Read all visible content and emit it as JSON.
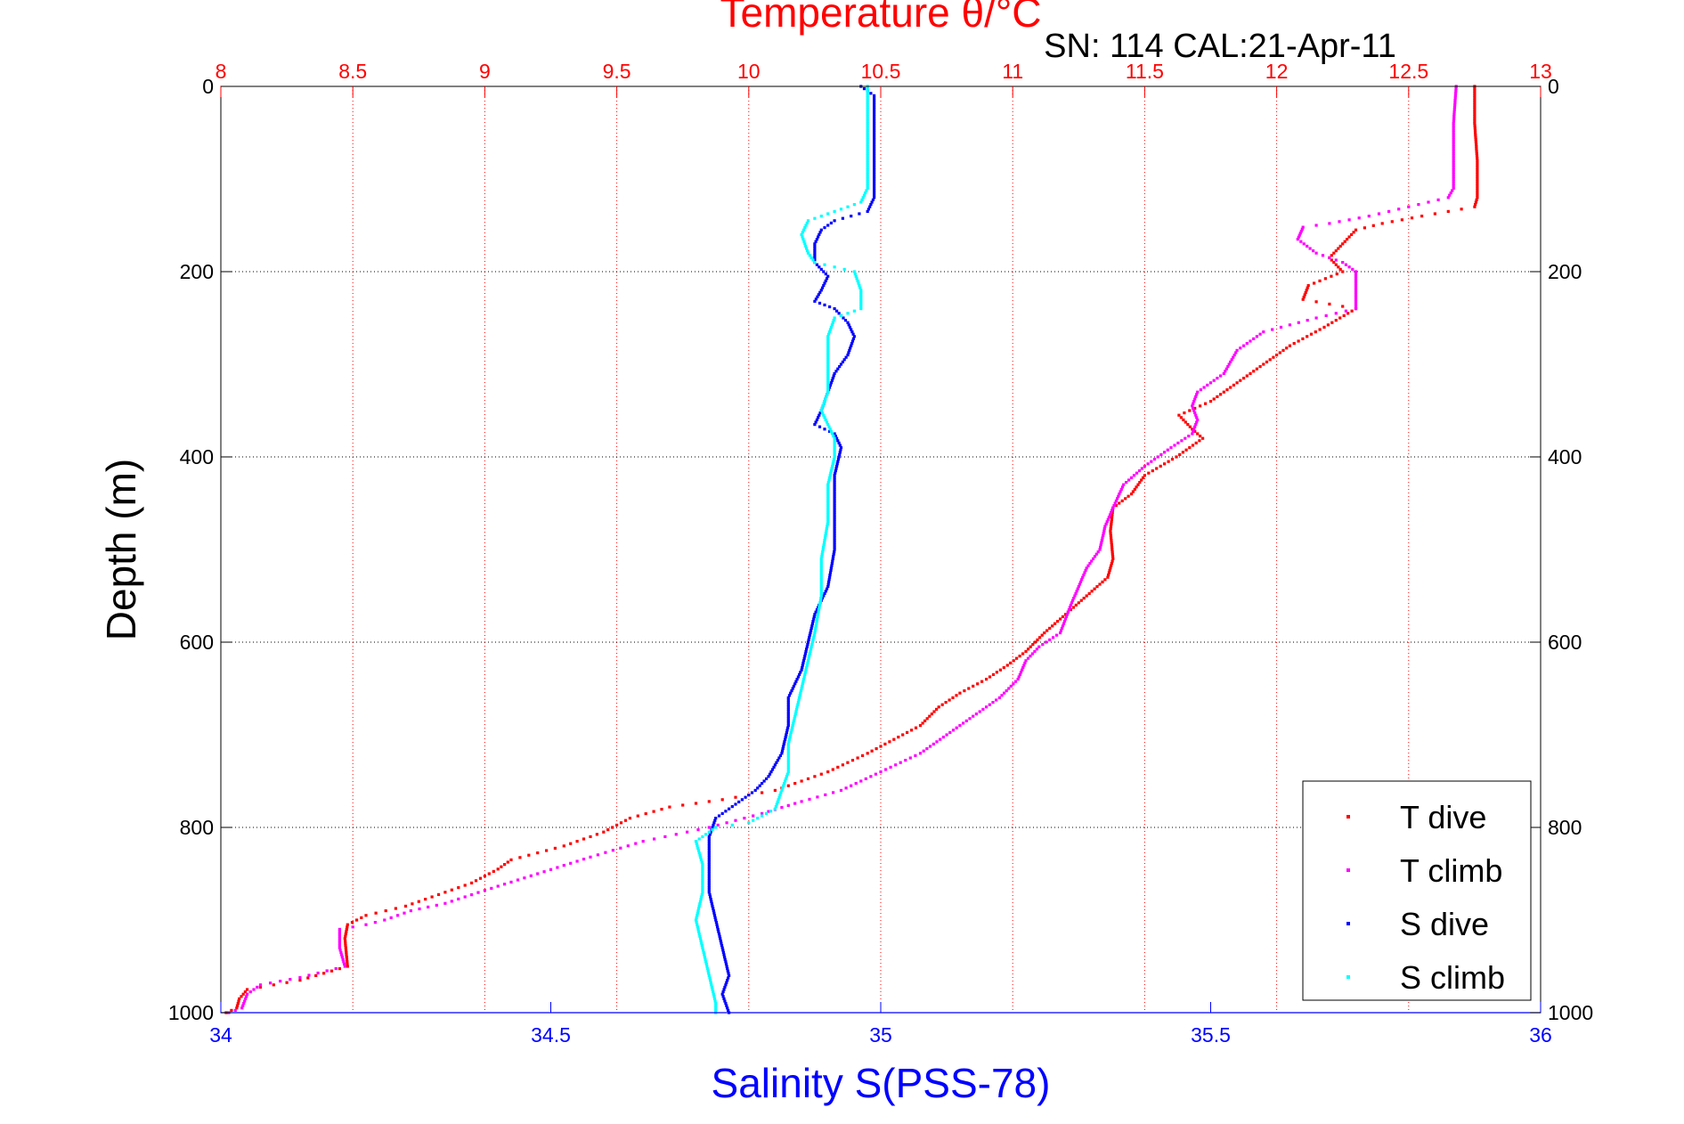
{
  "chart_data": {
    "type": "scatter",
    "title": "Temperature θ/°C",
    "subtitle": "SN: 114  CAL:21-Apr-11",
    "ylabel": "Depth (m)",
    "xlabel_bottom": "Salinity S(PSS-78)",
    "xlabel_top": "Temperature θ/°C",
    "ylim": [
      0,
      1000
    ],
    "y_reversed": true,
    "y_ticks": [
      0,
      200,
      400,
      600,
      800,
      1000
    ],
    "x_bottom": {
      "label": "Salinity S(PSS-78)",
      "range": [
        34,
        36
      ],
      "ticks": [
        34,
        34.5,
        35,
        35.5,
        36
      ],
      "color": "#0000ff"
    },
    "x_top": {
      "label": "Temperature θ/°C",
      "range": [
        8,
        13
      ],
      "ticks": [
        8,
        8.5,
        9,
        9.5,
        10,
        10.5,
        11,
        11.5,
        12,
        12.5,
        13
      ],
      "color": "#ff0000"
    },
    "grid": true,
    "legend_position": "bottom-right",
    "series": [
      {
        "name": "T dive",
        "axis": "top",
        "color": "#ff0000",
        "points": [
          [
            12.75,
            0
          ],
          [
            12.75,
            40
          ],
          [
            12.76,
            80
          ],
          [
            12.76,
            120
          ],
          [
            12.75,
            130
          ],
          [
            12.55,
            140
          ],
          [
            12.4,
            148
          ],
          [
            12.3,
            155
          ],
          [
            12.25,
            170
          ],
          [
            12.2,
            185
          ],
          [
            12.25,
            200
          ],
          [
            12.12,
            215
          ],
          [
            12.1,
            230
          ],
          [
            12.3,
            240
          ],
          [
            12.18,
            260
          ],
          [
            12.05,
            280
          ],
          [
            11.95,
            300
          ],
          [
            11.85,
            320
          ],
          [
            11.75,
            340
          ],
          [
            11.63,
            355
          ],
          [
            11.68,
            370
          ],
          [
            11.72,
            380
          ],
          [
            11.62,
            400
          ],
          [
            11.5,
            420
          ],
          [
            11.45,
            440
          ],
          [
            11.38,
            455
          ],
          [
            11.37,
            480
          ],
          [
            11.38,
            510
          ],
          [
            11.36,
            530
          ],
          [
            11.28,
            550
          ],
          [
            11.2,
            570
          ],
          [
            11.12,
            590
          ],
          [
            11.05,
            610
          ],
          [
            10.98,
            625
          ],
          [
            10.9,
            640
          ],
          [
            10.8,
            655
          ],
          [
            10.72,
            670
          ],
          [
            10.65,
            690
          ],
          [
            10.55,
            705
          ],
          [
            10.45,
            720
          ],
          [
            10.3,
            740
          ],
          [
            10.1,
            760
          ],
          [
            9.9,
            770
          ],
          [
            9.7,
            778
          ],
          [
            9.55,
            790
          ],
          [
            9.45,
            805
          ],
          [
            9.3,
            820
          ],
          [
            9.1,
            835
          ],
          [
            9.05,
            845
          ],
          [
            8.95,
            860
          ],
          [
            8.8,
            875
          ],
          [
            8.7,
            885
          ],
          [
            8.55,
            895
          ],
          [
            8.48,
            905
          ],
          [
            8.47,
            920
          ],
          [
            8.48,
            950
          ],
          [
            8.3,
            965
          ],
          [
            8.1,
            975
          ],
          [
            8.07,
            985
          ],
          [
            8.06,
            995
          ],
          [
            8.02,
            1000
          ]
        ]
      },
      {
        "name": "T climb",
        "axis": "top",
        "color": "#ff00ff",
        "points": [
          [
            12.68,
            0
          ],
          [
            12.67,
            40
          ],
          [
            12.67,
            80
          ],
          [
            12.67,
            110
          ],
          [
            12.65,
            120
          ],
          [
            12.5,
            130
          ],
          [
            12.35,
            140
          ],
          [
            12.2,
            148
          ],
          [
            12.1,
            152
          ],
          [
            12.08,
            165
          ],
          [
            12.15,
            180
          ],
          [
            12.25,
            190
          ],
          [
            12.3,
            200
          ],
          [
            12.3,
            215
          ],
          [
            12.3,
            240
          ],
          [
            12.15,
            250
          ],
          [
            11.95,
            265
          ],
          [
            11.85,
            285
          ],
          [
            11.8,
            310
          ],
          [
            11.7,
            330
          ],
          [
            11.68,
            345
          ],
          [
            11.7,
            360
          ],
          [
            11.68,
            375
          ],
          [
            11.6,
            390
          ],
          [
            11.5,
            410
          ],
          [
            11.42,
            430
          ],
          [
            11.38,
            455
          ],
          [
            11.35,
            475
          ],
          [
            11.33,
            500
          ],
          [
            11.28,
            520
          ],
          [
            11.25,
            540
          ],
          [
            11.22,
            560
          ],
          [
            11.2,
            575
          ],
          [
            11.18,
            590
          ],
          [
            11.1,
            605
          ],
          [
            11.05,
            620
          ],
          [
            11.02,
            640
          ],
          [
            10.95,
            660
          ],
          [
            10.85,
            680
          ],
          [
            10.75,
            700
          ],
          [
            10.65,
            720
          ],
          [
            10.5,
            740
          ],
          [
            10.35,
            760
          ],
          [
            10.2,
            772
          ],
          [
            10.05,
            785
          ],
          [
            9.85,
            800
          ],
          [
            9.6,
            815
          ],
          [
            9.4,
            832
          ],
          [
            9.2,
            850
          ],
          [
            9.0,
            868
          ],
          [
            8.85,
            882
          ],
          [
            8.72,
            890
          ],
          [
            8.62,
            900
          ],
          [
            8.55,
            905
          ],
          [
            8.45,
            910
          ],
          [
            8.45,
            930
          ],
          [
            8.47,
            950
          ],
          [
            8.3,
            962
          ],
          [
            8.15,
            970
          ],
          [
            8.1,
            980
          ],
          [
            8.08,
            995
          ],
          [
            8.03,
            1000
          ]
        ]
      },
      {
        "name": "S dive",
        "axis": "bottom",
        "color": "#0000ff",
        "points": [
          [
            34.97,
            0
          ],
          [
            34.99,
            10
          ],
          [
            34.99,
            60
          ],
          [
            34.99,
            120
          ],
          [
            34.98,
            135
          ],
          [
            34.93,
            145
          ],
          [
            34.91,
            155
          ],
          [
            34.9,
            170
          ],
          [
            34.9,
            190
          ],
          [
            34.92,
            205
          ],
          [
            34.91,
            220
          ],
          [
            34.9,
            232
          ],
          [
            34.93,
            240
          ],
          [
            34.95,
            255
          ],
          [
            34.96,
            270
          ],
          [
            34.95,
            290
          ],
          [
            34.93,
            310
          ],
          [
            34.92,
            330
          ],
          [
            34.91,
            350
          ],
          [
            34.9,
            365
          ],
          [
            34.93,
            375
          ],
          [
            34.94,
            390
          ],
          [
            34.93,
            420
          ],
          [
            34.93,
            460
          ],
          [
            34.93,
            500
          ],
          [
            34.92,
            540
          ],
          [
            34.9,
            570
          ],
          [
            34.89,
            600
          ],
          [
            34.88,
            630
          ],
          [
            34.86,
            660
          ],
          [
            34.86,
            690
          ],
          [
            34.85,
            720
          ],
          [
            34.83,
            745
          ],
          [
            34.81,
            760
          ],
          [
            34.78,
            775
          ],
          [
            34.75,
            790
          ],
          [
            34.74,
            810
          ],
          [
            34.74,
            840
          ],
          [
            34.74,
            870
          ],
          [
            34.75,
            900
          ],
          [
            34.76,
            930
          ],
          [
            34.77,
            960
          ],
          [
            34.76,
            980
          ],
          [
            34.77,
            1000
          ]
        ]
      },
      {
        "name": "S climb",
        "axis": "bottom",
        "color": "#00ffff",
        "points": [
          [
            34.98,
            0
          ],
          [
            34.98,
            60
          ],
          [
            34.98,
            110
          ],
          [
            34.97,
            125
          ],
          [
            34.93,
            135
          ],
          [
            34.89,
            145
          ],
          [
            34.88,
            160
          ],
          [
            34.89,
            180
          ],
          [
            34.9,
            190
          ],
          [
            34.96,
            200
          ],
          [
            34.97,
            220
          ],
          [
            34.97,
            240
          ],
          [
            34.93,
            250
          ],
          [
            34.92,
            270
          ],
          [
            34.92,
            300
          ],
          [
            34.92,
            330
          ],
          [
            34.91,
            350
          ],
          [
            34.92,
            365
          ],
          [
            34.93,
            380
          ],
          [
            34.93,
            400
          ],
          [
            34.92,
            430
          ],
          [
            34.92,
            470
          ],
          [
            34.91,
            510
          ],
          [
            34.91,
            550
          ],
          [
            34.9,
            590
          ],
          [
            34.89,
            620
          ],
          [
            34.88,
            650
          ],
          [
            34.87,
            680
          ],
          [
            34.86,
            710
          ],
          [
            34.86,
            740
          ],
          [
            34.85,
            760
          ],
          [
            34.84,
            780
          ],
          [
            34.8,
            795
          ],
          [
            34.75,
            800
          ],
          [
            34.72,
            815
          ],
          [
            34.73,
            840
          ],
          [
            34.73,
            870
          ],
          [
            34.72,
            900
          ],
          [
            34.73,
            930
          ],
          [
            34.74,
            960
          ],
          [
            34.75,
            990
          ],
          [
            34.75,
            1000
          ]
        ]
      }
    ]
  }
}
